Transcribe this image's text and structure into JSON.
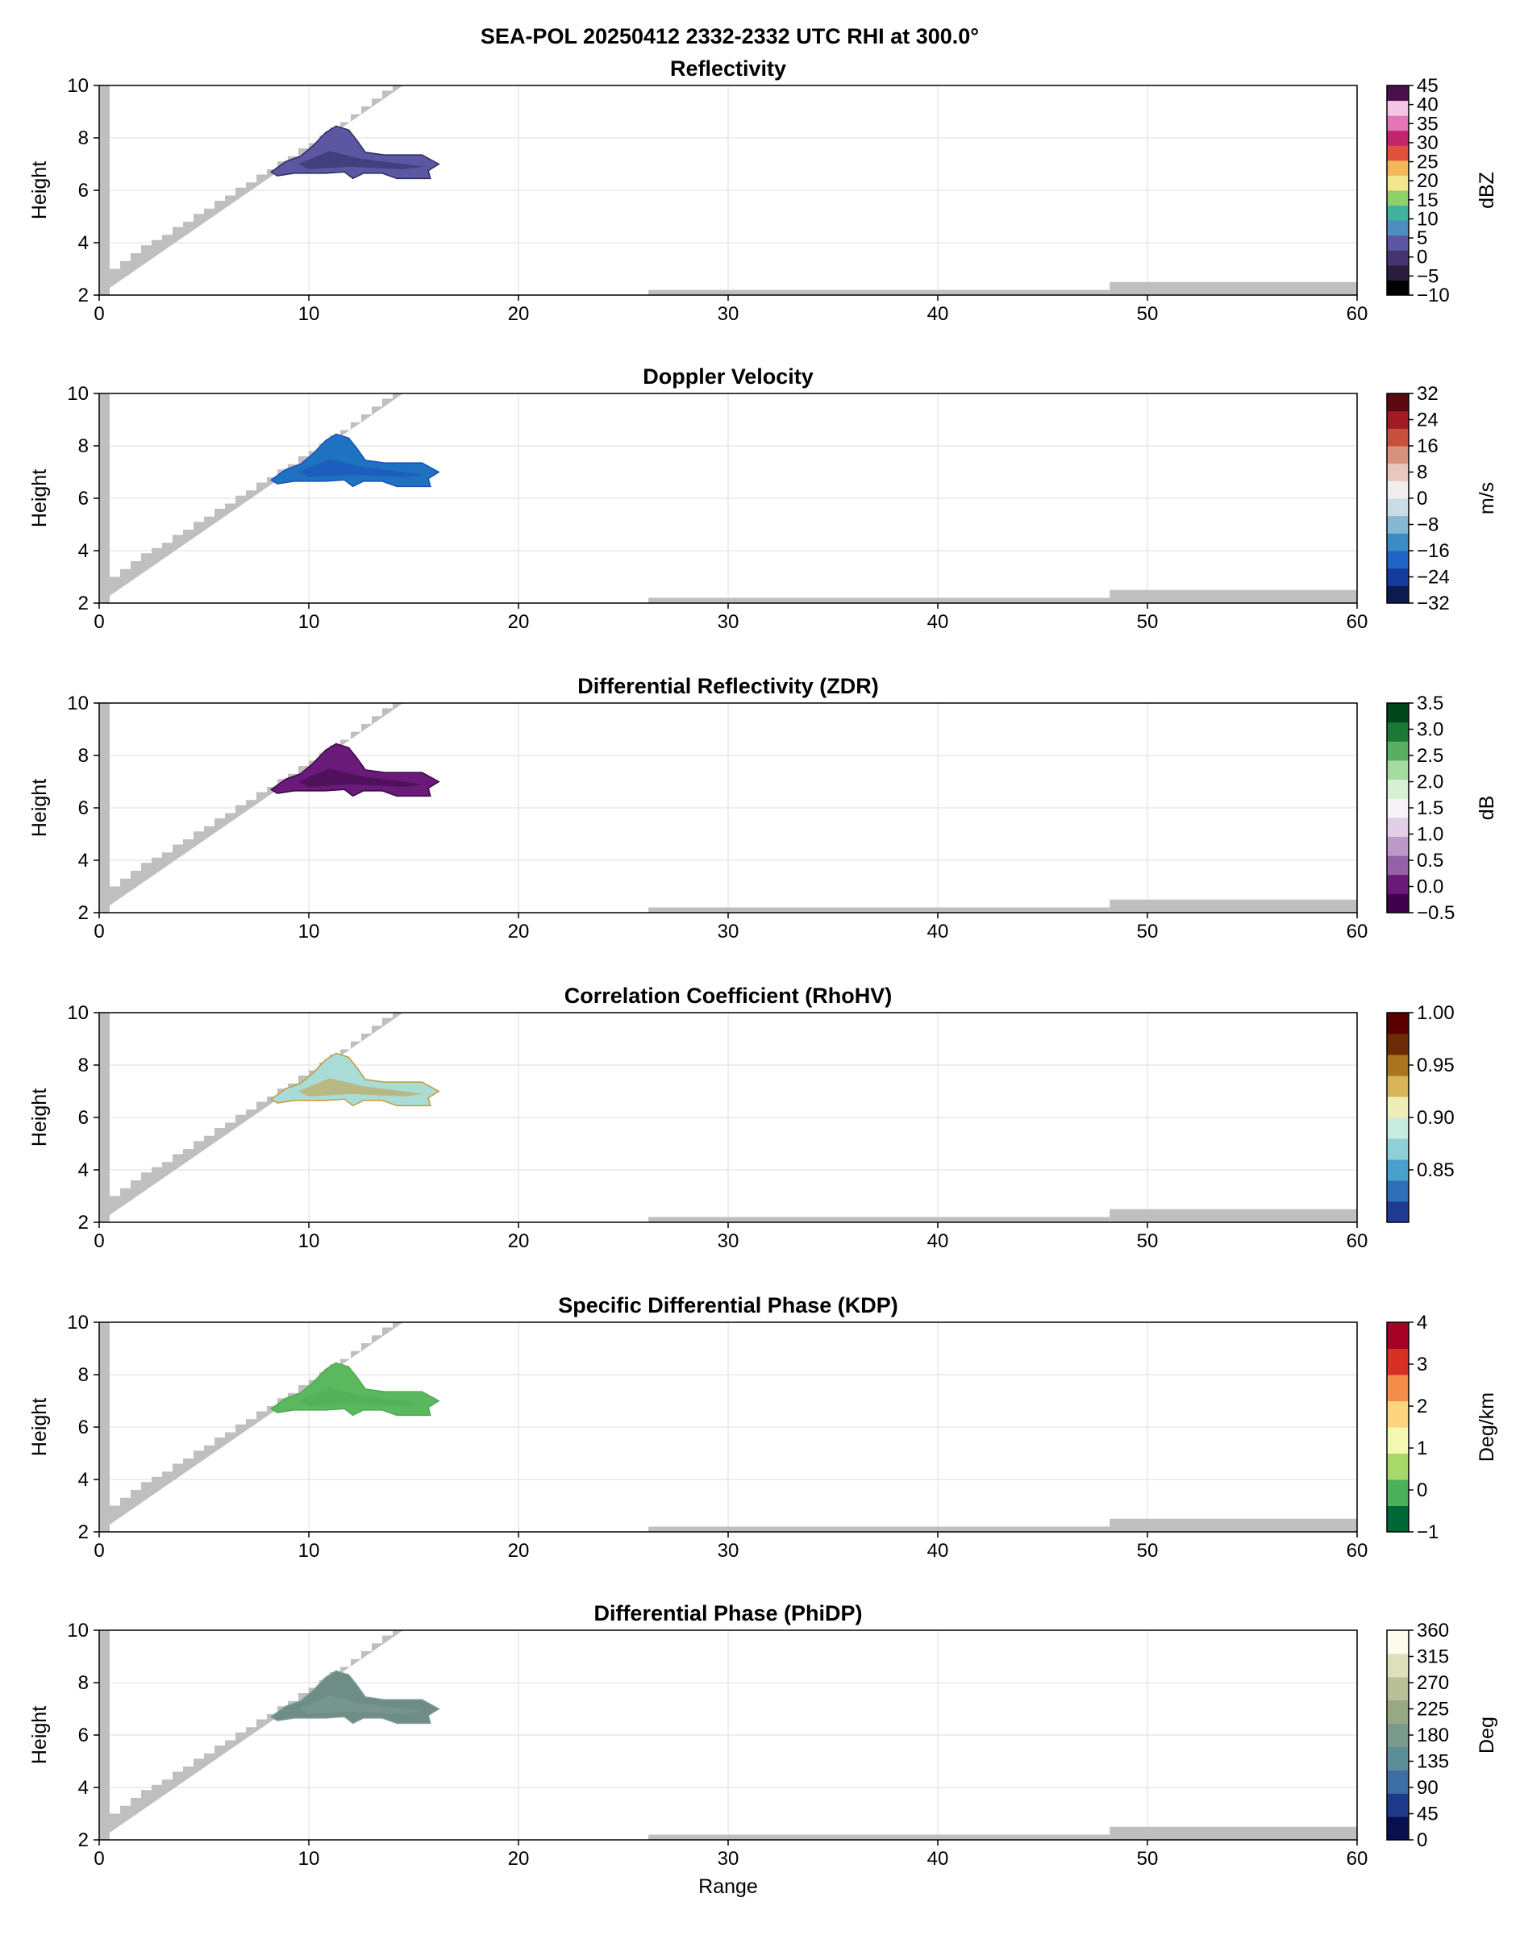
{
  "figure_title": "SEA-POL 20250412 2332-2332 UTC RHI at 300.0°",
  "x_label": "Range",
  "y_label": "Height",
  "chart_data": [
    {
      "type": "heatmap",
      "title": "Reflectivity",
      "xlabel": "",
      "ylabel": "Height",
      "xlim": [
        0,
        60
      ],
      "ylim": [
        2,
        10
      ],
      "xticks": [
        "0",
        "10",
        "20",
        "30",
        "40",
        "50",
        "60"
      ],
      "yticks": [
        "2",
        "4",
        "6",
        "8",
        "10"
      ],
      "grid": true,
      "colorbar": {
        "label": "dBZ",
        "range": [
          -10,
          45
        ],
        "ticks": [
          "−10",
          "−5",
          "0",
          "5",
          "10",
          "15",
          "20",
          "25",
          "30",
          "35",
          "40",
          "45"
        ],
        "tick_values": [
          -10,
          -5,
          0,
          5,
          10,
          15,
          20,
          25,
          30,
          35,
          40,
          45
        ],
        "colors": [
          "#000000",
          "#2b1d3c",
          "#463570",
          "#5a56a4",
          "#4f8cc0",
          "#40b3a0",
          "#8fd06a",
          "#f2e68f",
          "#f4b858",
          "#e2503c",
          "#c4246c",
          "#e276b6",
          "#f3c6e6",
          "#4a0f4a"
        ]
      },
      "echo_color": "#5b57a3",
      "echo_accent": "#2e2b5e",
      "echo_extent": {
        "range": [
          8.2,
          16.2
        ],
        "height": [
          6.4,
          8.4
        ]
      }
    },
    {
      "type": "heatmap",
      "title": "Doppler Velocity",
      "xlabel": "",
      "ylabel": "Height",
      "xlim": [
        0,
        60
      ],
      "ylim": [
        2,
        10
      ],
      "xticks": [
        "0",
        "10",
        "20",
        "30",
        "40",
        "50",
        "60"
      ],
      "yticks": [
        "2",
        "4",
        "6",
        "8",
        "10"
      ],
      "grid": true,
      "colorbar": {
        "label": "m/s",
        "range": [
          -32,
          32
        ],
        "ticks": [
          "−32",
          "−24",
          "−16",
          "−8",
          "0",
          "8",
          "16",
          "24",
          "32"
        ],
        "tick_values": [
          -32,
          -24,
          -16,
          -8,
          0,
          8,
          16,
          24,
          32
        ],
        "colors": [
          "#0b1b4f",
          "#143a9e",
          "#1f64c4",
          "#3b8cc4",
          "#86b8d2",
          "#c9dde6",
          "#f3eeee",
          "#e8c7bd",
          "#d7917c",
          "#c6503c",
          "#a31a24",
          "#5c0a12"
        ]
      },
      "echo_color": "#1f72c2",
      "echo_accent": "#1a4fb8",
      "echo_extent": {
        "range": [
          8.2,
          16.2
        ],
        "height": [
          6.4,
          8.4
        ]
      }
    },
    {
      "type": "heatmap",
      "title": "Differential Reflectivity (ZDR)",
      "xlabel": "",
      "ylabel": "Height",
      "xlim": [
        0,
        60
      ],
      "ylim": [
        2,
        10
      ],
      "xticks": [
        "0",
        "10",
        "20",
        "30",
        "40",
        "50",
        "60"
      ],
      "yticks": [
        "2",
        "4",
        "6",
        "8",
        "10"
      ],
      "grid": true,
      "colorbar": {
        "label": "dB",
        "range": [
          -0.5,
          3.5
        ],
        "ticks": [
          "−0.5",
          "0.0",
          "0.5",
          "1.0",
          "1.5",
          "2.0",
          "2.5",
          "3.0",
          "3.5"
        ],
        "tick_values": [
          -0.5,
          0,
          0.5,
          1,
          1.5,
          2,
          2.5,
          3,
          3.5
        ],
        "colors": [
          "#3f004b",
          "#6a1a78",
          "#9461a8",
          "#bb99c8",
          "#e0cfe6",
          "#f7f4f7",
          "#d7efd2",
          "#a6dba0",
          "#5aae61",
          "#1b7837",
          "#00441b"
        ]
      },
      "echo_color": "#6a1b79",
      "echo_accent": "#3a0744",
      "echo_extent": {
        "range": [
          8.2,
          16.2
        ],
        "height": [
          6.4,
          8.4
        ]
      }
    },
    {
      "type": "heatmap",
      "title": "Correlation Coefficient (RhoHV)",
      "xlabel": "",
      "ylabel": "Height",
      "xlim": [
        0,
        60
      ],
      "ylim": [
        2,
        10
      ],
      "xticks": [
        "0",
        "10",
        "20",
        "30",
        "40",
        "50",
        "60"
      ],
      "yticks": [
        "2",
        "4",
        "6",
        "8",
        "10"
      ],
      "grid": true,
      "colorbar": {
        "label": "",
        "range": [
          0.8,
          1.0
        ],
        "ticks": [
          "0.85",
          "0.90",
          "0.95",
          "1.00"
        ],
        "tick_values": [
          0.85,
          0.9,
          0.95,
          1.0
        ],
        "colors": [
          "#1f3a93",
          "#2f6fb8",
          "#4aa0cc",
          "#8dd0d8",
          "#c8ebe0",
          "#f0eeb8",
          "#d6b457",
          "#a8741c",
          "#6b2c05",
          "#5a0000"
        ]
      },
      "echo_color": "#a9dcd6",
      "echo_accent": "#c49a3e",
      "echo_extent": {
        "range": [
          8.2,
          16.2
        ],
        "height": [
          6.4,
          8.4
        ]
      }
    },
    {
      "type": "heatmap",
      "title": "Specific Differential Phase (KDP)",
      "xlabel": "",
      "ylabel": "Height",
      "xlim": [
        0,
        60
      ],
      "ylim": [
        2,
        10
      ],
      "xticks": [
        "0",
        "10",
        "20",
        "30",
        "40",
        "50",
        "60"
      ],
      "yticks": [
        "2",
        "4",
        "6",
        "8",
        "10"
      ],
      "grid": true,
      "colorbar": {
        "label": "Deg/km",
        "range": [
          -1,
          4
        ],
        "ticks": [
          "−1",
          "0",
          "1",
          "2",
          "3",
          "4"
        ],
        "tick_values": [
          -1,
          0,
          1,
          2,
          3,
          4
        ],
        "colors": [
          "#006837",
          "#4cb05a",
          "#a6d96a",
          "#f4f8b0",
          "#fdd57f",
          "#f48c4a",
          "#d73027",
          "#a50026"
        ]
      },
      "echo_color": "#5cb85f",
      "echo_accent": "#4aab55",
      "echo_extent": {
        "range": [
          8.2,
          16.2
        ],
        "height": [
          6.4,
          8.4
        ]
      }
    },
    {
      "type": "heatmap",
      "title": "Differential Phase (PhiDP)",
      "xlabel": "Range",
      "ylabel": "Height",
      "xlim": [
        0,
        60
      ],
      "ylim": [
        2,
        10
      ],
      "xticks": [
        "0",
        "10",
        "20",
        "30",
        "40",
        "50",
        "60"
      ],
      "yticks": [
        "2",
        "4",
        "6",
        "8",
        "10"
      ],
      "grid": true,
      "colorbar": {
        "label": "Deg",
        "range": [
          0,
          360
        ],
        "ticks": [
          "0",
          "45",
          "90",
          "135",
          "180",
          "225",
          "270",
          "315",
          "360"
        ],
        "tick_values": [
          0,
          45,
          90,
          135,
          180,
          225,
          270,
          315,
          360
        ],
        "colors": [
          "#08104f",
          "#1d3b8a",
          "#3c6ea4",
          "#5c8e9a",
          "#7a9a8c",
          "#98a883",
          "#b9c097",
          "#dde0bd",
          "#fbfbee"
        ]
      },
      "echo_color": "#6f8d87",
      "echo_accent": "#7e9c96",
      "echo_extent": {
        "range": [
          8.2,
          16.2
        ],
        "height": [
          6.4,
          8.4
        ]
      }
    }
  ],
  "colors": {
    "blocked_gray": "#bfbfbf",
    "grid": "#dddddd",
    "axes": "#000000"
  }
}
